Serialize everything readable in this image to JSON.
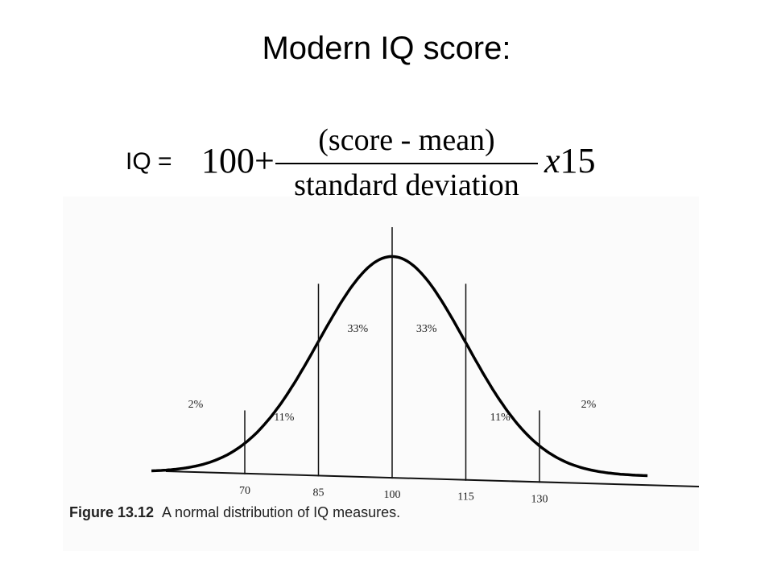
{
  "slide": {
    "title": "Modern IQ score:"
  },
  "formula": {
    "lhs": "IQ =",
    "constant": "100+",
    "numerator": "(score - mean)",
    "denominator": "standard deviation",
    "multiplier_symbol": "x",
    "multiplier_value": "15"
  },
  "figure": {
    "caption_label": "Figure 13.12",
    "caption_text": "A normal distribution of IQ measures.",
    "ticks": [
      {
        "value": 70,
        "label": "70"
      },
      {
        "value": 85,
        "label": "85"
      },
      {
        "value": 100,
        "label": "100"
      },
      {
        "value": 115,
        "label": "115"
      },
      {
        "value": 130,
        "label": "130"
      }
    ],
    "regions": [
      {
        "label": "2%",
        "center": 60
      },
      {
        "label": "11%",
        "center": 78
      },
      {
        "label": "33%",
        "center": 93
      },
      {
        "label": "33%",
        "center": 107
      },
      {
        "label": "11%",
        "center": 122
      },
      {
        "label": "2%",
        "center": 140
      }
    ],
    "curve": {
      "mean": 100,
      "sd": 15,
      "x_range": [
        51,
        152
      ]
    }
  }
}
